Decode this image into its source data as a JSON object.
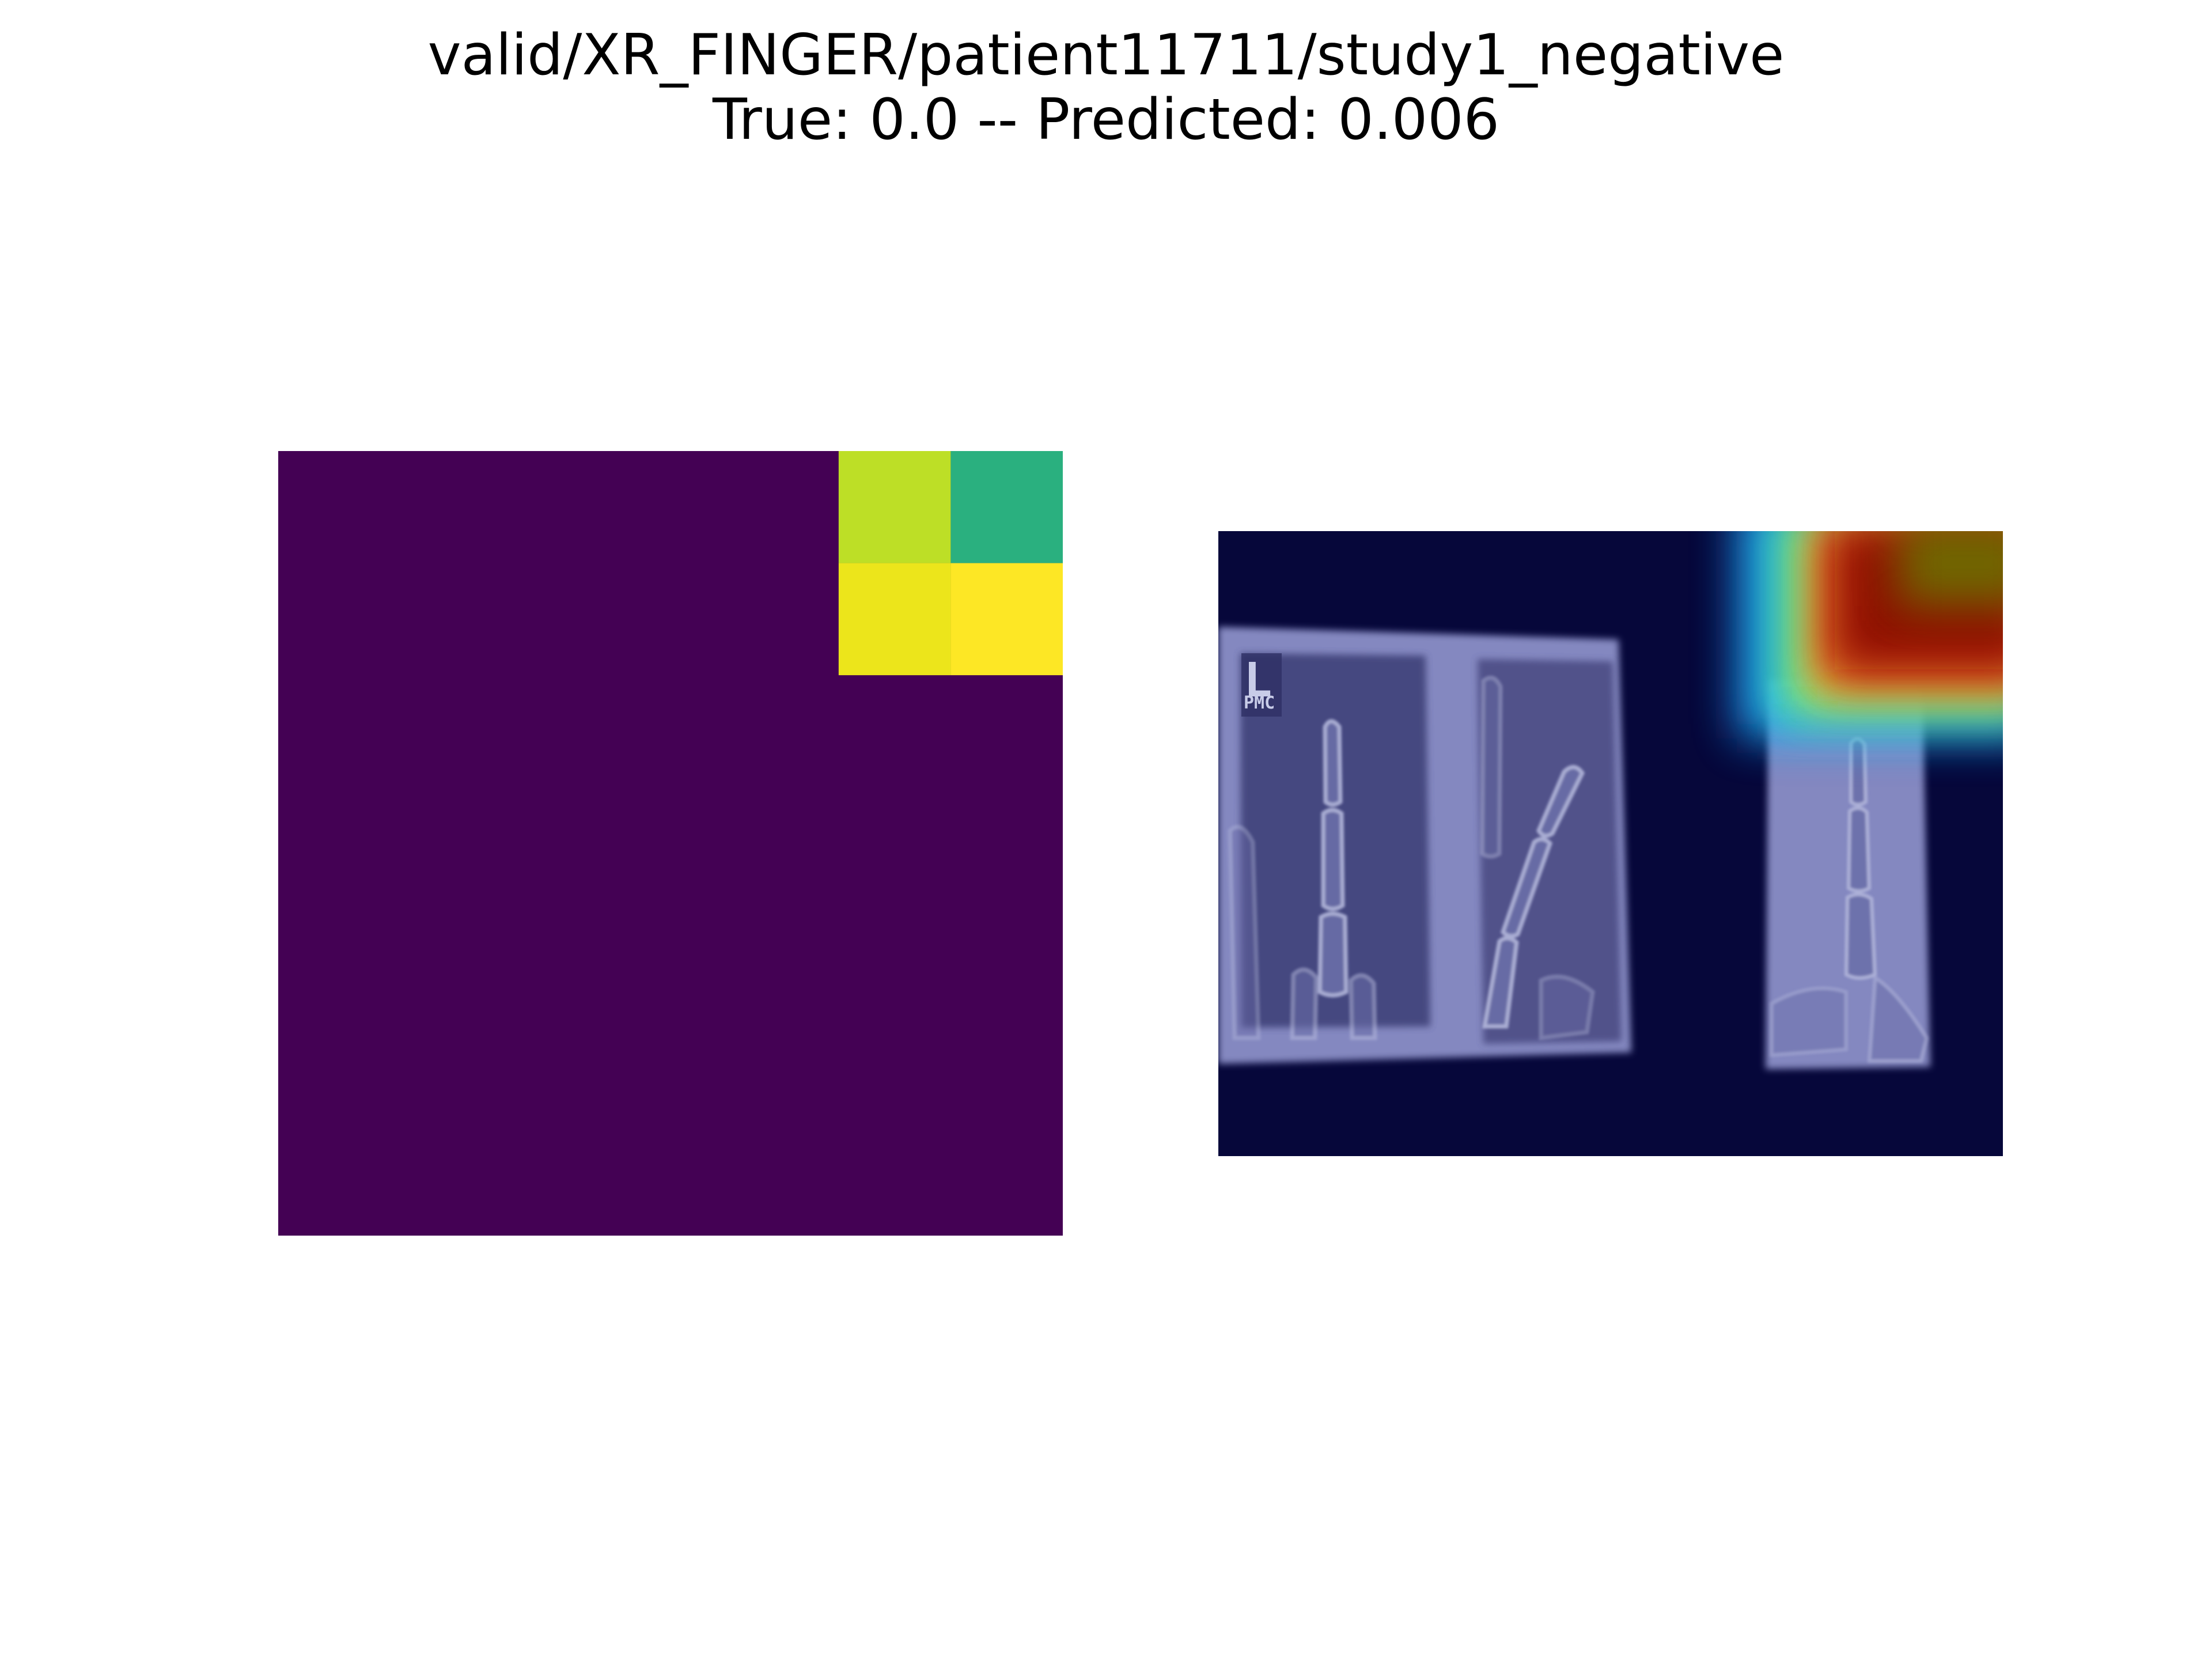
{
  "title": {
    "path": "valid/XR_FINGER/patient11711/study1_negative",
    "summary": "True: 0.0 -- Predicted: 0.006"
  },
  "heatmap": {
    "grid_size": 7,
    "colormap": "viridis",
    "background_color": "#440154",
    "hot_cells": [
      {
        "row": 0,
        "col": 5,
        "color": "#bddf26"
      },
      {
        "row": 0,
        "col": 6,
        "color": "#2ab07f"
      },
      {
        "row": 1,
        "col": 5,
        "color": "#ece51b"
      },
      {
        "row": 1,
        "col": 6,
        "color": "#fde725"
      }
    ]
  },
  "overlay": {
    "background_color": "#06073a",
    "film_color": "#8488c0",
    "marker_letter": "L",
    "marker_label": "PMC"
  }
}
